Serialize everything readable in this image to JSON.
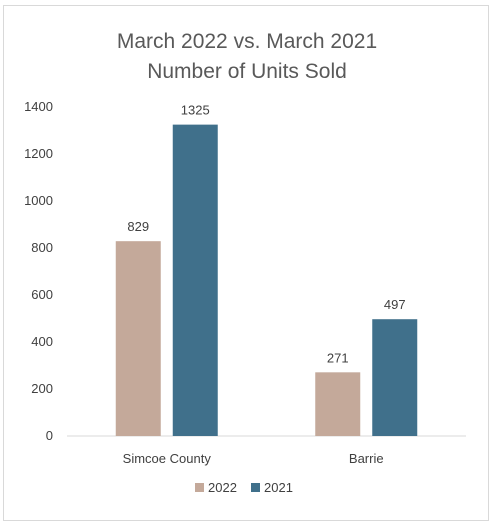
{
  "chart_data": {
    "type": "bar",
    "title": "March 2022 vs. March 2021",
    "subtitle": "Number of Units Sold",
    "xlabel": "",
    "ylabel": "",
    "categories": [
      "Simcoe County",
      "Barrie"
    ],
    "series": [
      {
        "name": "2022",
        "values": [
          829,
          271
        ],
        "color": "#c4a99a"
      },
      {
        "name": "2021",
        "values": [
          1325,
          497
        ],
        "color": "#40708b"
      }
    ],
    "ylim": [
      0,
      1400
    ],
    "yticks": [
      0,
      200,
      400,
      600,
      800,
      1000,
      1200,
      1400
    ],
    "grid": false,
    "legend_position": "bottom",
    "data_labels": true
  }
}
